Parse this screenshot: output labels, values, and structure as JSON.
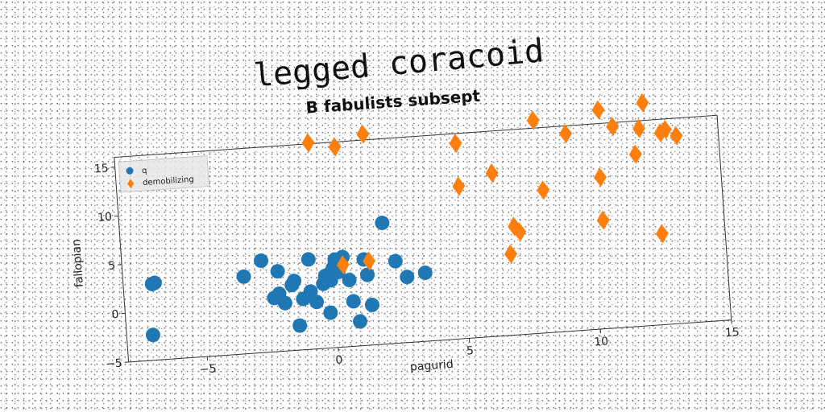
{
  "title": "legged coracoid",
  "chart_data": {
    "type": "scatter",
    "title": "B fabulists subsept",
    "xlabel": "pagurid",
    "ylabel": "fallopian",
    "xlim": [
      -8,
      15
    ],
    "ylim": [
      -5,
      16
    ],
    "xticks": [
      -5,
      0,
      5,
      10,
      15
    ],
    "yticks": [
      -5,
      0,
      5,
      10,
      15
    ],
    "grid": false,
    "legend_position": "top-left",
    "series": [
      {
        "name": "q",
        "marker": "circle",
        "color": "#1f77b4",
        "points": [
          [
            -6.8,
            2.9
          ],
          [
            -6.9,
            2.8
          ],
          [
            -7.0,
            -2.4
          ],
          [
            -3.4,
            2.9
          ],
          [
            -2.7,
            4.4
          ],
          [
            -2.3,
            0.5
          ],
          [
            -2.1,
            0.9
          ],
          [
            -1.9,
            -0.1
          ],
          [
            -1.6,
            1.7
          ],
          [
            -1.4,
            -2.5
          ],
          [
            -1.2,
            0.2
          ],
          [
            -0.9,
            4.2
          ],
          [
            -0.7,
            -0.2
          ],
          [
            -0.4,
            1.6
          ],
          [
            -0.1,
            1.9
          ],
          [
            -0.3,
            2.4
          ],
          [
            0.2,
            2.7
          ],
          [
            0.1,
            4.0
          ],
          [
            0.4,
            4.2
          ],
          [
            0.6,
            1.8
          ],
          [
            0.7,
            -0.4
          ],
          [
            0.9,
            -2.5
          ],
          [
            -0.2,
            -1.4
          ],
          [
            1.2,
            3.8
          ],
          [
            1.3,
            2.2
          ],
          [
            1.4,
            -0.9
          ],
          [
            2.0,
            7.4
          ],
          [
            2.4,
            3.4
          ],
          [
            2.8,
            1.7
          ],
          [
            3.5,
            2.0
          ],
          [
            -2.1,
            3.2
          ],
          [
            -1.5,
            2.1
          ],
          [
            -0.9,
            0.9
          ],
          [
            0.0,
            3.1
          ]
        ]
      },
      {
        "name": "demobilizing",
        "marker": "diamond",
        "color": "#ff7f0e",
        "points": [
          [
            -0.6,
            16.1
          ],
          [
            0.4,
            15.5
          ],
          [
            1.5,
            16.6
          ],
          [
            0.4,
            3.4
          ],
          [
            1.4,
            3.6
          ],
          [
            5.0,
            15.0
          ],
          [
            5.0,
            10.6
          ],
          [
            6.3,
            11.7
          ],
          [
            7.0,
            6.1
          ],
          [
            7.2,
            5.5
          ],
          [
            6.8,
            3.3
          ],
          [
            8.2,
            9.6
          ],
          [
            8.0,
            16.8
          ],
          [
            9.2,
            15.2
          ],
          [
            10.4,
            6.1
          ],
          [
            10.4,
            10.5
          ],
          [
            10.5,
            17.4
          ],
          [
            11.0,
            15.6
          ],
          [
            11.8,
            12.6
          ],
          [
            12.0,
            15.2
          ],
          [
            12.2,
            17.8
          ],
          [
            12.6,
            4.3
          ],
          [
            12.8,
            14.6
          ],
          [
            13.0,
            14.9
          ],
          [
            13.4,
            14.2
          ]
        ]
      }
    ]
  }
}
